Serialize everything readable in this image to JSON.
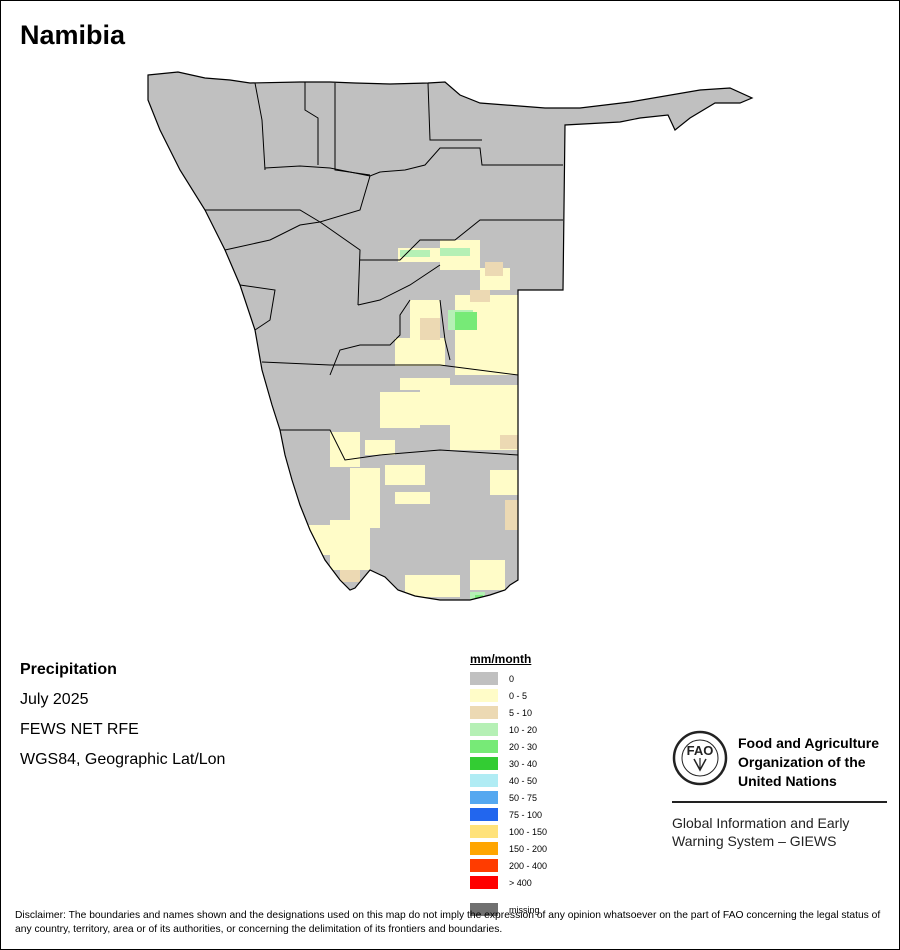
{
  "title": "Namibia",
  "info": {
    "variable": "Precipitation",
    "period": "July 2025",
    "source": "FEWS NET RFE",
    "projection": "WGS84, Geographic Lat/Lon"
  },
  "legend": {
    "title": "mm/month",
    "classes": [
      {
        "label": "0",
        "color": "#c0c0c0"
      },
      {
        "label": "0 - 5",
        "color": "#fffcc8"
      },
      {
        "label": "5 - 10",
        "color": "#ecd9b3"
      },
      {
        "label": "10 - 20",
        "color": "#b5f0b5"
      },
      {
        "label": "20 - 30",
        "color": "#77ea77"
      },
      {
        "label": "30 - 40",
        "color": "#33cc33"
      },
      {
        "label": "40 - 50",
        "color": "#b0ecf4"
      },
      {
        "label": "50 - 75",
        "color": "#55a8f0"
      },
      {
        "label": "75 - 100",
        "color": "#2266ee"
      },
      {
        "label": "100 - 150",
        "color": "#ffe27a"
      },
      {
        "label": "150 - 200",
        "color": "#ffa500"
      },
      {
        "label": "200 - 400",
        "color": "#ff3c00"
      },
      {
        "label": "> 400",
        "color": "#ff0000"
      }
    ],
    "missing": {
      "label": "missing",
      "color": "#707070"
    }
  },
  "logo": {
    "org_lines": [
      "Food and Agriculture",
      "Organization of the",
      "United Nations"
    ],
    "giews_lines": [
      "Global Information and Early",
      "Warning System – GIEWS"
    ]
  },
  "disclaimer": "Disclaimer: The boundaries and names shown and the designations used on this map do not imply the expression of any opinion whatsoever on the part of FAO concerning the legal status of any country, territory, area or of its authorities, or concerning the delimitation of its frontiers and boundaries."
}
